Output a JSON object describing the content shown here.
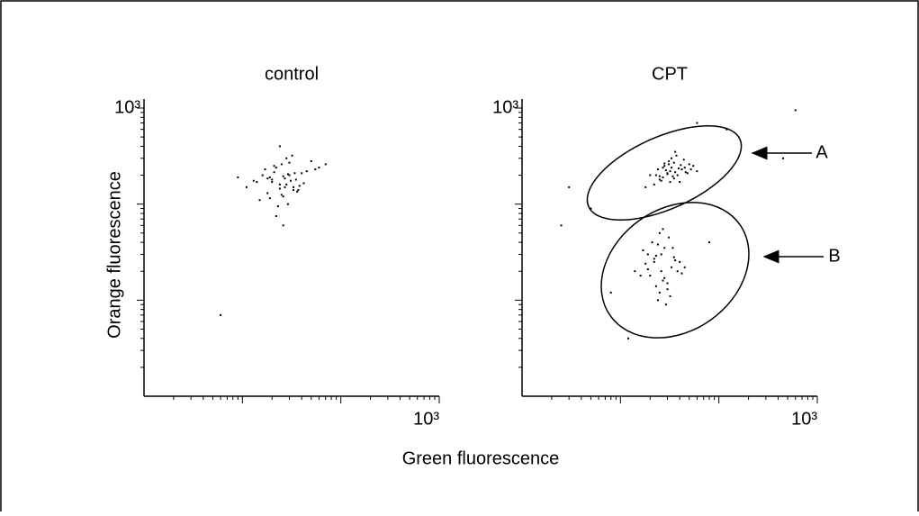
{
  "axis_labels": {
    "x": "Green fluorescence",
    "y": "Orange fluorescence"
  },
  "chart_data": [
    {
      "type": "scatter",
      "title": "control",
      "log_scale": true,
      "color": "#000000",
      "xlim": [
        1,
        1000
      ],
      "ylim": [
        1,
        1000
      ],
      "xticks": [
        {
          "value": 1000,
          "label": "10³"
        }
      ],
      "yticks": [
        {
          "value": 1000,
          "label": "10³"
        }
      ],
      "minor_ticks": [
        2,
        3,
        4,
        5,
        6,
        7,
        8,
        9,
        10,
        20,
        30,
        40,
        50,
        60,
        70,
        80,
        90,
        100,
        200,
        300,
        400,
        500,
        600,
        700,
        800,
        900
      ],
      "x": [
        24,
        30,
        18,
        35,
        22,
        27,
        15,
        40,
        28,
        20,
        33,
        25,
        19,
        45,
        26,
        31,
        17,
        38,
        23,
        29,
        21,
        36,
        14,
        50,
        27,
        24,
        32,
        19,
        42,
        26,
        60,
        11,
        22,
        34,
        28,
        16,
        25,
        30,
        20,
        37,
        9,
        55,
        24,
        29,
        13,
        70,
        26,
        21,
        33,
        18,
        6
      ],
      "y": [
        160,
        200,
        130,
        180,
        240,
        150,
        110,
        210,
        300,
        170,
        140,
        260,
        190,
        220,
        120,
        175,
        230,
        155,
        95,
        205,
        250,
        135,
        170,
        280,
        185,
        145,
        320,
        115,
        165,
        195,
        240,
        150,
        75,
        210,
        160,
        200,
        125,
        270,
        180,
        140,
        190,
        230,
        400,
        100,
        175,
        260,
        60,
        215,
        150,
        185,
        7
      ]
    },
    {
      "type": "scatter",
      "title": "CPT",
      "log_scale": true,
      "color": "#000000",
      "xlim": [
        1,
        1000
      ],
      "ylim": [
        1,
        1000
      ],
      "xticks": [
        {
          "value": 1000,
          "label": "10³"
        }
      ],
      "yticks": [
        {
          "value": 1000,
          "label": "10³"
        }
      ],
      "minor_ticks": [
        2,
        3,
        4,
        5,
        6,
        7,
        8,
        9,
        10,
        20,
        30,
        40,
        50,
        60,
        70,
        80,
        90,
        100,
        200,
        300,
        400,
        500,
        600,
        700,
        800,
        900
      ],
      "annotations": [
        "A",
        "B"
      ],
      "x": [
        32,
        28,
        38,
        25,
        35,
        42,
        30,
        22,
        45,
        33,
        27,
        50,
        36,
        24,
        40,
        31,
        20,
        55,
        34,
        29,
        37,
        26,
        48,
        33,
        18,
        44,
        30,
        39,
        28,
        60,
        35,
        23,
        41,
        32,
        27,
        46,
        36,
        25,
        52,
        31,
        26,
        22,
        30,
        19,
        33,
        25,
        28,
        16,
        35,
        24,
        21,
        38,
        27,
        18,
        31,
        23,
        40,
        26,
        14,
        29,
        34,
        20,
        25,
        45,
        22,
        30,
        17,
        28,
        36,
        24,
        32,
        19,
        27,
        42,
        23,
        3,
        5,
        80,
        120,
        8,
        600,
        450,
        12,
        60,
        2.5
      ],
      "y": [
        220,
        250,
        200,
        180,
        270,
        230,
        210,
        160,
        240,
        300,
        190,
        260,
        215,
        230,
        170,
        280,
        200,
        250,
        195,
        225,
        320,
        175,
        210,
        240,
        150,
        290,
        205,
        235,
        265,
        220,
        185,
        200,
        255,
        170,
        240,
        215,
        350,
        195,
        230,
        260,
        20,
        25,
        15,
        30,
        22,
        12,
        35,
        18,
        28,
        10,
        40,
        20,
        16,
        24,
        45,
        14,
        25,
        30,
        20,
        9,
        35,
        18,
        50,
        22,
        27,
        13,
        33,
        17,
        26,
        38,
        11,
        21,
        55,
        19,
        29,
        150,
        90,
        40,
        600,
        12,
        950,
        300,
        4,
        700,
        60
      ]
    }
  ]
}
